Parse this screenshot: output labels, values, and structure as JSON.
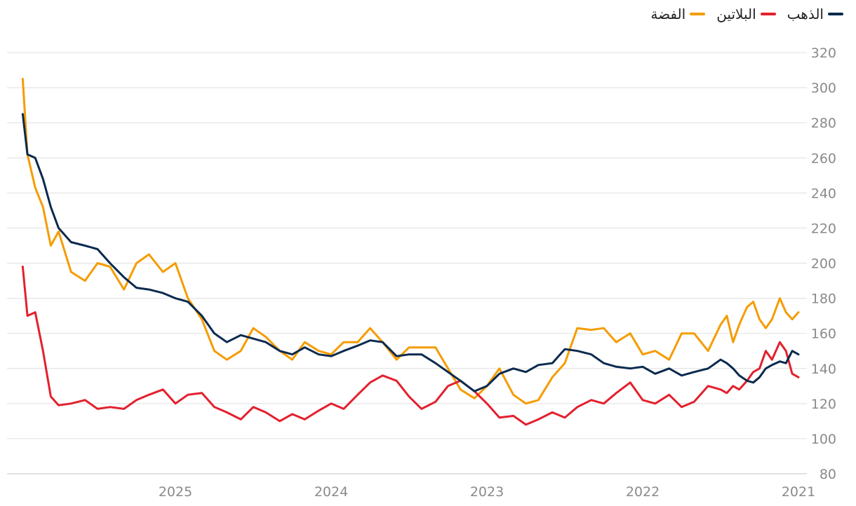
{
  "chart_data": {
    "type": "line",
    "title": "",
    "xlabel": "",
    "ylabel": "",
    "ylim": [
      80,
      330
    ],
    "yticks": [
      80,
      100,
      120,
      140,
      160,
      180,
      200,
      220,
      240,
      260,
      280,
      300,
      320
    ],
    "x_axis_direction": "right-to-left",
    "xlim": [
      2021.0,
      2026.0
    ],
    "xtick_values": [
      2021,
      2022,
      2023,
      2024,
      2025
    ],
    "xtick_labels": [
      "2021",
      "2022",
      "2023",
      "2024",
      "2025"
    ],
    "legend_position": "top-right",
    "series": [
      {
        "name": "الذهب",
        "color": "#0b2a4f",
        "x": [
          2021.0,
          2021.04,
          2021.08,
          2021.12,
          2021.17,
          2021.21,
          2021.25,
          2021.29,
          2021.33,
          2021.38,
          2021.42,
          2021.46,
          2021.5,
          2021.58,
          2021.67,
          2021.75,
          2021.83,
          2021.92,
          2022.0,
          2022.08,
          2022.17,
          2022.25,
          2022.33,
          2022.42,
          2022.5,
          2022.58,
          2022.67,
          2022.75,
          2022.83,
          2022.92,
          2023.0,
          2023.08,
          2023.17,
          2023.25,
          2023.33,
          2023.42,
          2023.5,
          2023.58,
          2023.67,
          2023.75,
          2023.83,
          2023.92,
          2024.0,
          2024.08,
          2024.17,
          2024.25,
          2024.33,
          2024.42,
          2024.5,
          2024.58,
          2024.67,
          2024.75,
          2024.83,
          2024.92,
          2025.0,
          2025.08,
          2025.17,
          2025.25,
          2025.33,
          2025.42,
          2025.5,
          2025.58,
          2025.67,
          2025.75,
          2025.8,
          2025.85,
          2025.9,
          2025.95,
          2025.98
        ],
        "values": [
          148,
          150,
          143,
          144,
          142,
          140,
          135,
          132,
          133,
          136,
          140,
          143,
          145,
          140,
          138,
          136,
          140,
          137,
          141,
          140,
          141,
          143,
          148,
          150,
          151,
          143,
          142,
          138,
          140,
          137,
          130,
          127,
          133,
          138,
          143,
          148,
          148,
          147,
          155,
          156,
          153,
          150,
          147,
          148,
          152,
          148,
          150,
          155,
          157,
          159,
          155,
          160,
          170,
          178,
          180,
          183,
          185,
          186,
          192,
          200,
          208,
          210,
          212,
          220,
          232,
          248,
          260,
          262,
          285
        ]
      },
      {
        "name": "البلاتين",
        "color": "#e3202e",
        "x": [
          2021.0,
          2021.04,
          2021.08,
          2021.12,
          2021.17,
          2021.21,
          2021.25,
          2021.29,
          2021.33,
          2021.38,
          2021.42,
          2021.46,
          2021.5,
          2021.58,
          2021.67,
          2021.75,
          2021.83,
          2021.92,
          2022.0,
          2022.08,
          2022.17,
          2022.25,
          2022.33,
          2022.42,
          2022.5,
          2022.58,
          2022.67,
          2022.75,
          2022.83,
          2022.92,
          2023.0,
          2023.08,
          2023.17,
          2023.25,
          2023.33,
          2023.42,
          2023.5,
          2023.58,
          2023.67,
          2023.75,
          2023.83,
          2023.92,
          2024.0,
          2024.08,
          2024.17,
          2024.25,
          2024.33,
          2024.42,
          2024.5,
          2024.58,
          2024.67,
          2024.75,
          2024.83,
          2024.92,
          2025.0,
          2025.08,
          2025.17,
          2025.25,
          2025.33,
          2025.42,
          2025.5,
          2025.58,
          2025.67,
          2025.75,
          2025.8,
          2025.85,
          2025.9,
          2025.95,
          2025.98
        ],
        "values": [
          135,
          137,
          150,
          155,
          145,
          150,
          140,
          138,
          133,
          128,
          130,
          126,
          128,
          130,
          121,
          118,
          125,
          120,
          122,
          132,
          126,
          120,
          122,
          118,
          112,
          115,
          111,
          108,
          113,
          112,
          120,
          127,
          133,
          130,
          121,
          117,
          124,
          133,
          136,
          132,
          125,
          117,
          120,
          116,
          111,
          114,
          110,
          115,
          118,
          111,
          115,
          118,
          126,
          125,
          120,
          128,
          125,
          122,
          117,
          118,
          117,
          122,
          120,
          119,
          124,
          150,
          172,
          170,
          198
        ]
      },
      {
        "name": "الفضة",
        "color": "#f59c00",
        "x": [
          2021.0,
          2021.04,
          2021.08,
          2021.12,
          2021.17,
          2021.21,
          2021.25,
          2021.29,
          2021.33,
          2021.38,
          2021.42,
          2021.46,
          2021.5,
          2021.58,
          2021.67,
          2021.75,
          2021.83,
          2021.92,
          2022.0,
          2022.08,
          2022.17,
          2022.25,
          2022.33,
          2022.42,
          2022.5,
          2022.58,
          2022.67,
          2022.75,
          2022.83,
          2022.92,
          2023.0,
          2023.08,
          2023.17,
          2023.25,
          2023.33,
          2023.42,
          2023.5,
          2023.58,
          2023.67,
          2023.75,
          2023.83,
          2023.92,
          2024.0,
          2024.08,
          2024.17,
          2024.25,
          2024.33,
          2024.42,
          2024.5,
          2024.58,
          2024.67,
          2024.75,
          2024.83,
          2024.92,
          2025.0,
          2025.08,
          2025.17,
          2025.25,
          2025.33,
          2025.42,
          2025.5,
          2025.58,
          2025.67,
          2025.75,
          2025.8,
          2025.85,
          2025.9,
          2025.95,
          2025.98
        ],
        "values": [
          172,
          168,
          172,
          180,
          168,
          163,
          168,
          178,
          175,
          165,
          155,
          170,
          165,
          150,
          160,
          160,
          145,
          150,
          148,
          160,
          155,
          163,
          162,
          163,
          143,
          135,
          122,
          120,
          125,
          140,
          130,
          123,
          128,
          140,
          152,
          152,
          152,
          145,
          155,
          163,
          155,
          155,
          148,
          150,
          155,
          145,
          150,
          158,
          163,
          150,
          145,
          150,
          168,
          180,
          200,
          195,
          205,
          200,
          185,
          198,
          200,
          190,
          195,
          218,
          210,
          232,
          243,
          262,
          305
        ]
      }
    ]
  }
}
